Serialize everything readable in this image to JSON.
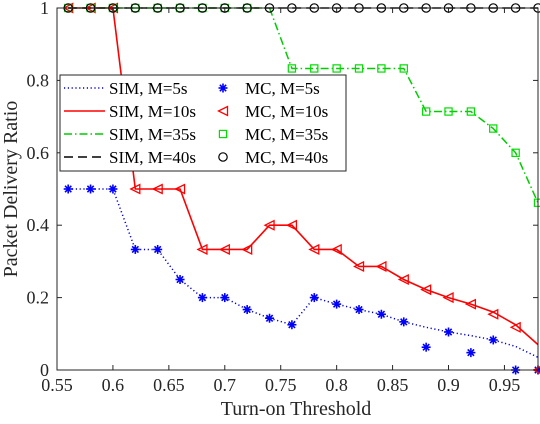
{
  "chart_data": {
    "type": "line",
    "xlabel": "Turn-on Threshold",
    "ylabel": "Packet Delivery Ratio",
    "xlim": [
      0.55,
      0.98
    ],
    "ylim": [
      0,
      1
    ],
    "xticks": [
      0.55,
      0.6,
      0.65,
      0.7,
      0.75,
      0.8,
      0.85,
      0.9,
      0.95
    ],
    "xtick_labels": [
      "0.55",
      "0.6",
      "0.65",
      "0.7",
      "0.75",
      "0.8",
      "0.85",
      "0.9",
      "0.95"
    ],
    "yticks": [
      0,
      0.2,
      0.4,
      0.6,
      0.8,
      1
    ],
    "ytick_labels": [
      "0",
      "0.2",
      "0.4",
      "0.6",
      "0.8",
      "1"
    ],
    "grid": false,
    "legend_position": "middle-left",
    "series": [
      {
        "name": "SIM, M=5s",
        "kind": "line",
        "style": "dotted",
        "color": "#0000cc",
        "points": [
          [
            0.56,
            0.5
          ],
          [
            0.6,
            0.5
          ],
          [
            0.62,
            0.333
          ],
          [
            0.64,
            0.333
          ],
          [
            0.66,
            0.25
          ],
          [
            0.68,
            0.2
          ],
          [
            0.7,
            0.2
          ],
          [
            0.72,
            0.167
          ],
          [
            0.74,
            0.143
          ],
          [
            0.76,
            0.125
          ],
          [
            0.78,
            0.2
          ],
          [
            0.8,
            0.182
          ],
          [
            0.82,
            0.167
          ],
          [
            0.84,
            0.154
          ],
          [
            0.86,
            0.133
          ],
          [
            0.88,
            0.118
          ],
          [
            0.9,
            0.105
          ],
          [
            0.92,
            0.095
          ],
          [
            0.94,
            0.083
          ],
          [
            0.96,
            0.065
          ],
          [
            0.98,
            0.035
          ]
        ]
      },
      {
        "name": "SIM, M=10s",
        "kind": "line",
        "style": "solid",
        "color": "#ff0000",
        "points": [
          [
            0.56,
            1.0
          ],
          [
            0.6,
            1.0
          ],
          [
            0.62,
            0.5
          ],
          [
            0.66,
            0.5
          ],
          [
            0.68,
            0.333
          ],
          [
            0.72,
            0.333
          ],
          [
            0.74,
            0.4
          ],
          [
            0.76,
            0.4
          ],
          [
            0.78,
            0.333
          ],
          [
            0.8,
            0.333
          ],
          [
            0.82,
            0.286
          ],
          [
            0.84,
            0.286
          ],
          [
            0.86,
            0.25
          ],
          [
            0.88,
            0.222
          ],
          [
            0.9,
            0.2
          ],
          [
            0.92,
            0.182
          ],
          [
            0.94,
            0.16
          ],
          [
            0.96,
            0.125
          ],
          [
            0.98,
            0.07
          ]
        ]
      },
      {
        "name": "SIM, M=35s",
        "kind": "line",
        "style": "dashdot",
        "color": "#00cc00",
        "points": [
          [
            0.56,
            1.0
          ],
          [
            0.74,
            1.0
          ],
          [
            0.76,
            0.833
          ],
          [
            0.86,
            0.833
          ],
          [
            0.88,
            0.714
          ],
          [
            0.92,
            0.714
          ],
          [
            0.94,
            0.667
          ],
          [
            0.96,
            0.6
          ],
          [
            0.98,
            0.462
          ]
        ]
      },
      {
        "name": "SIM, M=40s",
        "kind": "line",
        "style": "dashed",
        "color": "#000000",
        "points": [
          [
            0.56,
            1.0
          ],
          [
            0.98,
            1.0
          ]
        ]
      },
      {
        "name": "MC, M=5s",
        "kind": "marker",
        "marker": "asterisk",
        "color": "#0000ff",
        "points": [
          [
            0.56,
            0.5
          ],
          [
            0.58,
            0.5
          ],
          [
            0.6,
            0.5
          ],
          [
            0.62,
            0.333
          ],
          [
            0.64,
            0.333
          ],
          [
            0.66,
            0.25
          ],
          [
            0.68,
            0.2
          ],
          [
            0.7,
            0.2
          ],
          [
            0.72,
            0.167
          ],
          [
            0.74,
            0.143
          ],
          [
            0.76,
            0.125
          ],
          [
            0.78,
            0.2
          ],
          [
            0.8,
            0.182
          ],
          [
            0.82,
            0.167
          ],
          [
            0.84,
            0.154
          ],
          [
            0.86,
            0.133
          ],
          [
            0.88,
            0.063
          ],
          [
            0.9,
            0.105
          ],
          [
            0.92,
            0.048
          ],
          [
            0.94,
            0.083
          ],
          [
            0.96,
            0.0
          ],
          [
            0.98,
            0.0
          ]
        ]
      },
      {
        "name": "MC, M=10s",
        "kind": "marker",
        "marker": "triangle-left",
        "color": "#ff0000",
        "points": [
          [
            0.56,
            1.0
          ],
          [
            0.58,
            1.0
          ],
          [
            0.6,
            1.0
          ],
          [
            0.62,
            0.5
          ],
          [
            0.64,
            0.5
          ],
          [
            0.66,
            0.5
          ],
          [
            0.68,
            0.333
          ],
          [
            0.7,
            0.333
          ],
          [
            0.72,
            0.333
          ],
          [
            0.74,
            0.4
          ],
          [
            0.76,
            0.4
          ],
          [
            0.78,
            0.333
          ],
          [
            0.8,
            0.333
          ],
          [
            0.82,
            0.286
          ],
          [
            0.84,
            0.286
          ],
          [
            0.86,
            0.25
          ],
          [
            0.88,
            0.222
          ],
          [
            0.9,
            0.2
          ],
          [
            0.92,
            0.182
          ],
          [
            0.94,
            0.154
          ],
          [
            0.96,
            0.118
          ],
          [
            0.98,
            0.0
          ]
        ]
      },
      {
        "name": "MC, M=35s",
        "kind": "marker",
        "marker": "square",
        "color": "#00dd00",
        "points": [
          [
            0.56,
            1.0
          ],
          [
            0.58,
            1.0
          ],
          [
            0.6,
            1.0
          ],
          [
            0.62,
            1.0
          ],
          [
            0.64,
            1.0
          ],
          [
            0.66,
            1.0
          ],
          [
            0.68,
            1.0
          ],
          [
            0.7,
            1.0
          ],
          [
            0.72,
            1.0
          ],
          [
            0.76,
            0.833
          ],
          [
            0.78,
            0.833
          ],
          [
            0.8,
            0.833
          ],
          [
            0.82,
            0.833
          ],
          [
            0.84,
            0.833
          ],
          [
            0.86,
            0.833
          ],
          [
            0.88,
            0.714
          ],
          [
            0.9,
            0.714
          ],
          [
            0.92,
            0.714
          ],
          [
            0.94,
            0.667
          ],
          [
            0.96,
            0.6
          ],
          [
            0.98,
            0.462
          ]
        ]
      },
      {
        "name": "MC, M=40s",
        "kind": "marker",
        "marker": "circle",
        "color": "#000000",
        "points": [
          [
            0.56,
            1.0
          ],
          [
            0.58,
            1.0
          ],
          [
            0.6,
            1.0
          ],
          [
            0.62,
            1.0
          ],
          [
            0.64,
            1.0
          ],
          [
            0.66,
            1.0
          ],
          [
            0.68,
            1.0
          ],
          [
            0.7,
            1.0
          ],
          [
            0.72,
            1.0
          ],
          [
            0.74,
            1.0
          ],
          [
            0.76,
            1.0
          ],
          [
            0.78,
            1.0
          ],
          [
            0.8,
            1.0
          ],
          [
            0.82,
            1.0
          ],
          [
            0.84,
            1.0
          ],
          [
            0.86,
            1.0
          ],
          [
            0.88,
            1.0
          ],
          [
            0.9,
            1.0
          ],
          [
            0.92,
            1.0
          ],
          [
            0.94,
            1.0
          ],
          [
            0.96,
            1.0
          ],
          [
            0.98,
            1.0
          ]
        ]
      }
    ]
  }
}
